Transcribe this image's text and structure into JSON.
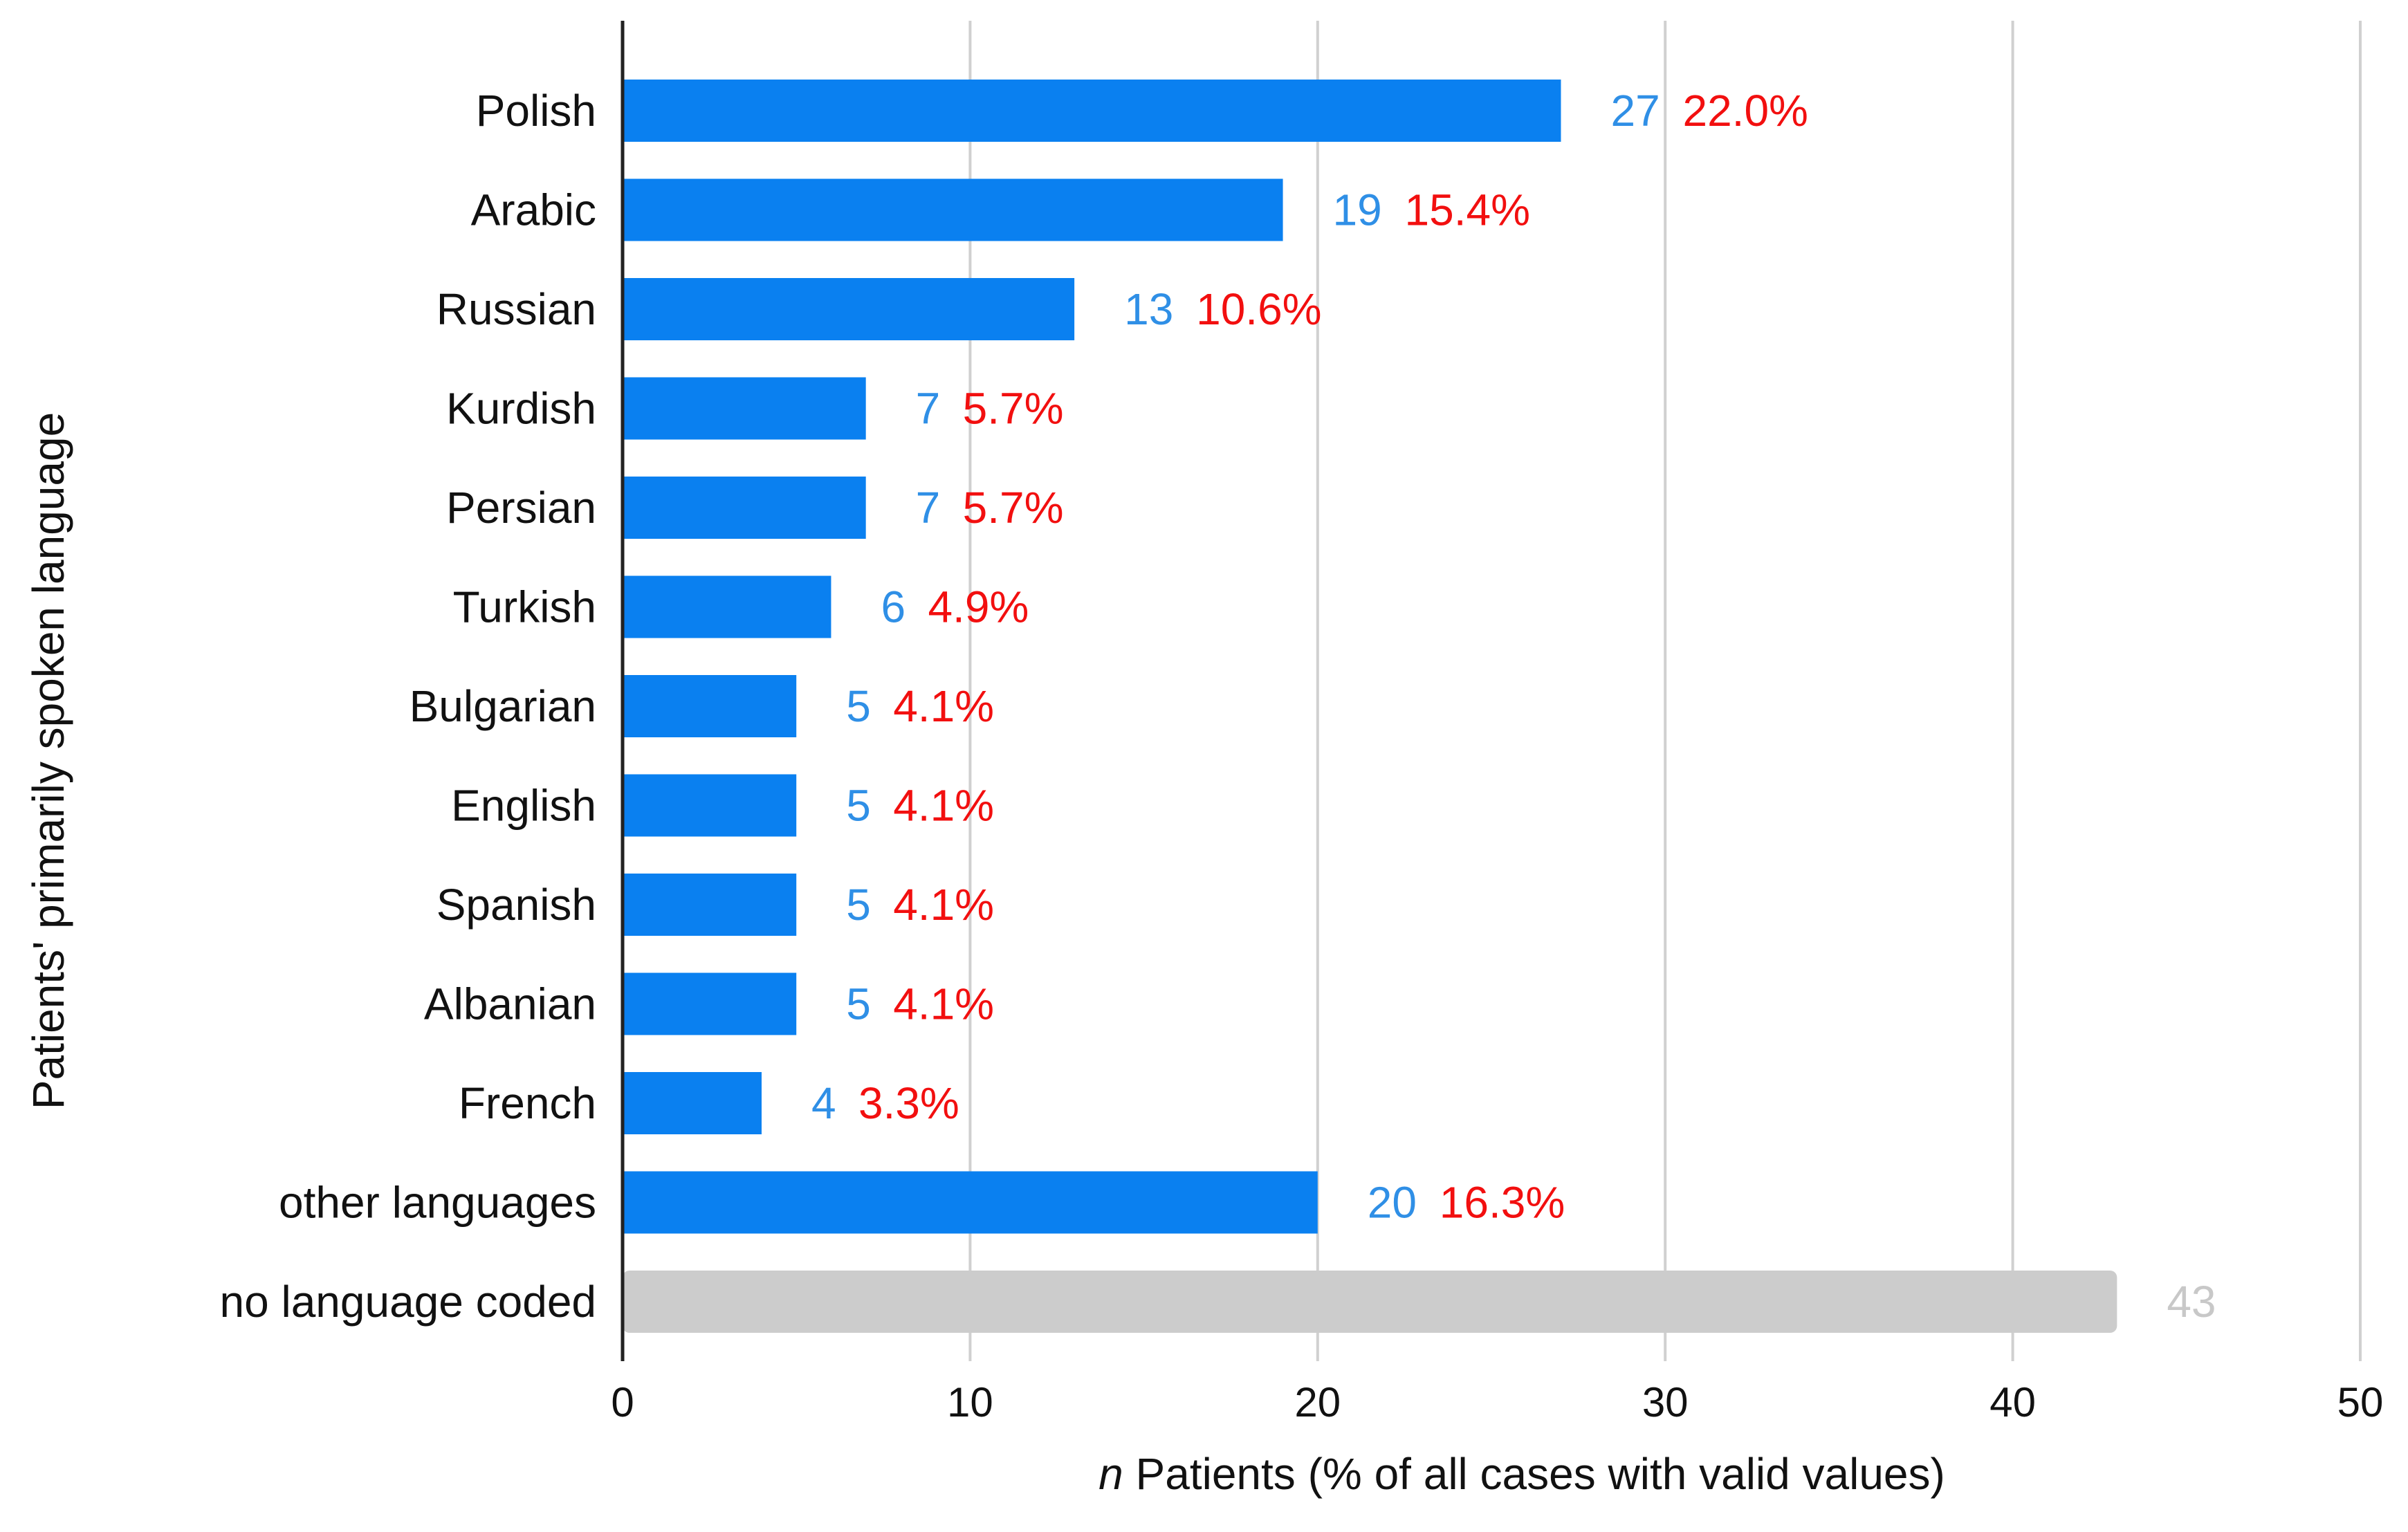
{
  "chart_data": {
    "type": "bar",
    "orientation": "horizontal",
    "title": "",
    "ylabel": "Patients' primarily spoken language",
    "xlabel": {
      "italic_part": "n",
      "rest": " Patients (% of all cases with valid values)"
    },
    "xlim": [
      0,
      50
    ],
    "xticks": [
      "0",
      "10",
      "20",
      "30",
      "40",
      "50"
    ],
    "grid": "vertical",
    "categories": [
      "Polish",
      "Arabic",
      "Russian",
      "Kurdish",
      "Persian",
      "Turkish",
      "Bulgarian",
      "English",
      "Spanish",
      "Albanian",
      "French",
      "other languages",
      "no language coded"
    ],
    "values": [
      27,
      19,
      13,
      7,
      7,
      6,
      5,
      5,
      5,
      5,
      4,
      20,
      43
    ],
    "count_labels": [
      "27",
      "19",
      "13",
      "7",
      "7",
      "6",
      "5",
      "5",
      "5",
      "5",
      "4",
      "20",
      "43"
    ],
    "percent_labels": [
      "22.0%",
      "15.4%",
      "10.6%",
      "5.7%",
      "5.7%",
      "4.9%",
      "4.1%",
      "4.1%",
      "4.1%",
      "4.1%",
      "3.3%",
      "16.3%",
      ""
    ],
    "bar_kind": [
      "valid",
      "valid",
      "valid",
      "valid",
      "valid",
      "valid",
      "valid",
      "valid",
      "valid",
      "valid",
      "valid",
      "valid",
      "missing"
    ]
  },
  "colors": {
    "bar_valid": "#0a80f0",
    "bar_missing": "#cccccc",
    "count_valid": "#2f8fe6",
    "count_missing": "#c8c8c8",
    "percent": "#f20f0f",
    "grid": "#d0d0d0",
    "axis": "#222222",
    "text": "#111111"
  }
}
